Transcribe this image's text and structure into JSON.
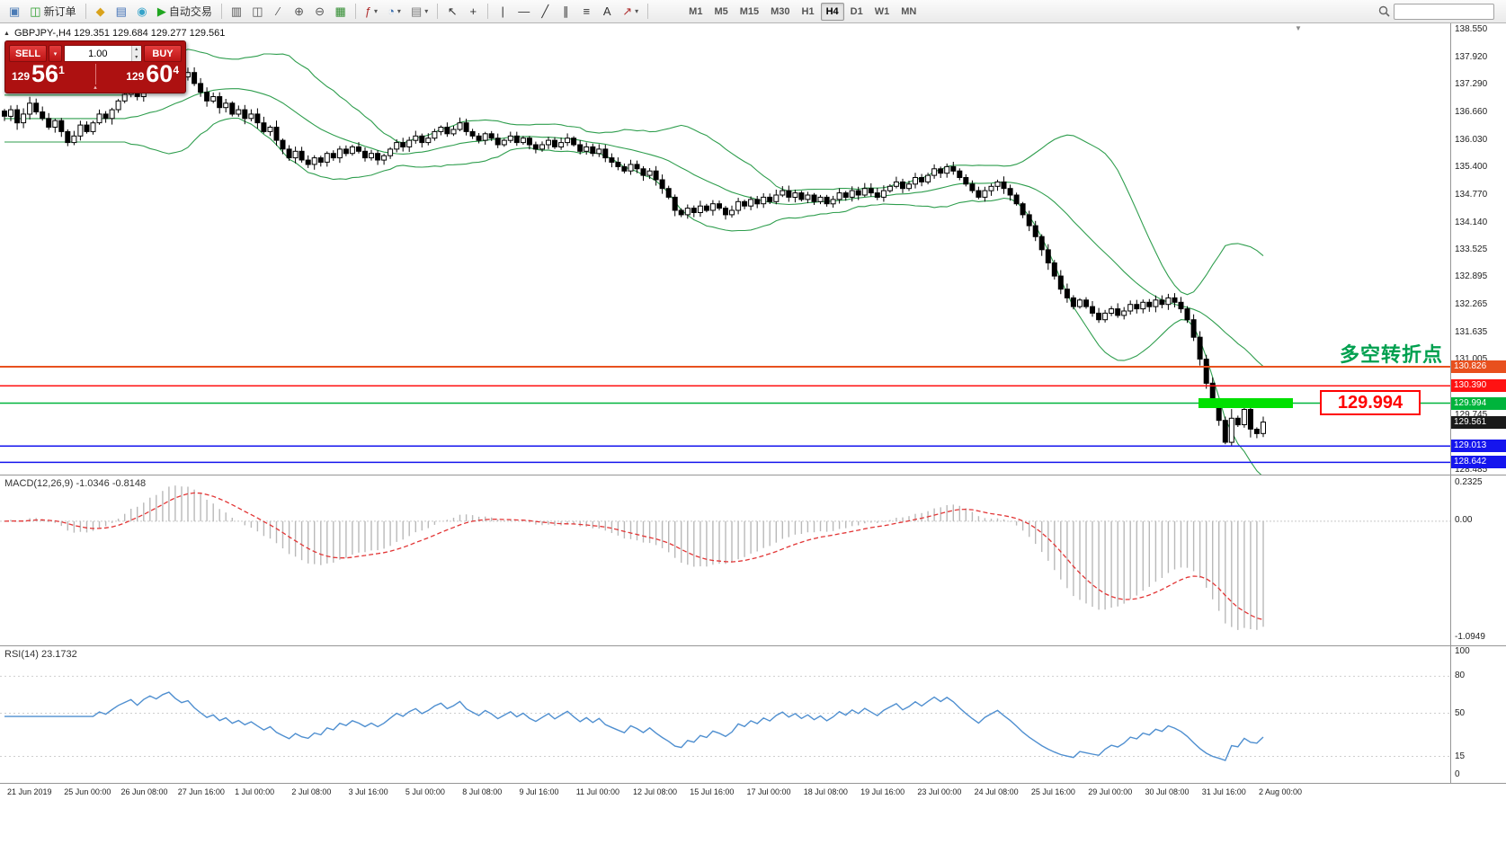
{
  "toolbar": {
    "buttons": [
      {
        "name": "chart-window-button",
        "glyph": "▣",
        "color": "#4a7ab5"
      },
      {
        "name": "new-order-button",
        "glyph": "◫",
        "color": "#2a9d2a",
        "label": "新订单"
      },
      {
        "sep": true
      },
      {
        "name": "metaeditor-button",
        "glyph": "◆",
        "color": "#d9a21b"
      },
      {
        "name": "market-watch-button",
        "glyph": "▤",
        "color": "#3f6fb5"
      },
      {
        "name": "navigator-button",
        "glyph": "◉",
        "color": "#36a3c9"
      },
      {
        "name": "autotrading-button",
        "glyph": "▶",
        "color": "#1fa51f",
        "label": "自动交易"
      },
      {
        "sep": true
      },
      {
        "name": "bar-chart-button",
        "glyph": "▥",
        "color": "#555555"
      },
      {
        "name": "candlestick-chart-button",
        "glyph": "◫",
        "color": "#555555"
      },
      {
        "name": "line-chart-button",
        "glyph": "∕",
        "color": "#555555"
      },
      {
        "name": "zoom-in-button",
        "glyph": "⊕",
        "color": "#555555"
      },
      {
        "name": "zoom-out-button",
        "glyph": "⊖",
        "color": "#555555"
      },
      {
        "name": "tile-windows-button",
        "glyph": "▦",
        "color": "#2c8a2c"
      },
      {
        "sep": true
      },
      {
        "name": "indicators-button",
        "glyph": "ƒ",
        "color": "#b03030",
        "caret": true
      },
      {
        "name": "periods-button",
        "glyph": "◔",
        "color": "#3a6fb0",
        "caret": true
      },
      {
        "name": "templates-button",
        "glyph": "▤",
        "color": "#777777",
        "caret": true
      },
      {
        "sep": true
      },
      {
        "name": "cursor-button",
        "glyph": "↖",
        "color": "#333333"
      },
      {
        "name": "crosshair-button",
        "glyph": "+",
        "color": "#333333"
      },
      {
        "sep": true
      },
      {
        "name": "vertical-line-button",
        "glyph": "|",
        "color": "#333333"
      },
      {
        "name": "horizontal-line-button",
        "glyph": "—",
        "color": "#333333"
      },
      {
        "name": "trendline-button",
        "glyph": "╱",
        "color": "#333333"
      },
      {
        "name": "equidistant-channel-button",
        "glyph": "∥",
        "color": "#333333"
      },
      {
        "name": "fibonacci-button",
        "glyph": "≡",
        "color": "#333333"
      },
      {
        "name": "text-button",
        "glyph": "A",
        "color": "#333333"
      },
      {
        "name": "arrows-button",
        "glyph": "↗",
        "color": "#b03030",
        "caret": true
      },
      {
        "sep": true
      }
    ],
    "timeframes": [
      "M1",
      "M5",
      "M15",
      "M30",
      "H1",
      "H4",
      "D1",
      "W1",
      "MN"
    ],
    "active_timeframe": "H4"
  },
  "icons": {
    "caret_down": "▾",
    "caret_up": "▴",
    "collapse": "▲",
    "shift_marker": "▼"
  },
  "symbol_info": "GBPJPY-,H4  129.351 129.684 129.277 129.561",
  "trade_panel": {
    "sell_label": "SELL",
    "buy_label": "BUY",
    "volume": "1.00",
    "sell_price": {
      "prefix": "129",
      "big": "56",
      "sup": "1"
    },
    "buy_price": {
      "prefix": "129",
      "big": "60",
      "sup": "4"
    }
  },
  "annotation": {
    "text": "多空转折点",
    "color": "#00a04f"
  },
  "price_callout": {
    "text": "129.994",
    "color": "#ff0000"
  },
  "highlight_zone": {
    "price": 129.994,
    "color": "#00e000"
  },
  "levels": [
    {
      "label": "130.826",
      "price": 130.826,
      "color": "#e8501e",
      "line": true
    },
    {
      "label": "130.390",
      "price": 130.39,
      "color": "#ff1212",
      "line": true
    },
    {
      "label": "129.994",
      "price": 129.994,
      "color": "#00b43c",
      "line": true
    },
    {
      "label": "129.561",
      "price": 129.561,
      "color": "#1a1a1a",
      "line": false
    },
    {
      "label": "129.013",
      "price": 129.013,
      "color": "#1515ee",
      "line": true
    },
    {
      "label": "128.642",
      "price": 128.642,
      "color": "#1515ee",
      "line": true
    }
  ],
  "price_axis": {
    "ticks": [
      "138.550",
      "137.920",
      "137.290",
      "136.660",
      "136.030",
      "135.400",
      "134.770",
      "134.140",
      "133.525",
      "132.895",
      "132.265",
      "131.635",
      "131.005",
      "130.375",
      "129.745",
      "129.115",
      "128.485"
    ]
  },
  "macd": {
    "label": "MACD(12,26,9) -1.0346 -0.8148",
    "ticks": [
      "0.2325",
      "0.00",
      "-1.0949"
    ]
  },
  "rsi": {
    "label": "RSI(14) 23.1732",
    "ticks": [
      "100",
      "80",
      "50",
      "15",
      "0"
    ],
    "levels": [
      80,
      50,
      15
    ]
  },
  "time_axis": [
    "21 Jun 2019",
    "25 Jun 00:00",
    "26 Jun 08:00",
    "27 Jun 16:00",
    "1 Jul 00:00",
    "2 Jul 08:00",
    "3 Jul 16:00",
    "5 Jul 00:00",
    "8 Jul 08:00",
    "9 Jul 16:00",
    "11 Jul 00:00",
    "12 Jul 08:00",
    "15 Jul 16:00",
    "17 Jul 00:00",
    "18 Jul 08:00",
    "19 Jul 16:00",
    "23 Jul 00:00",
    "24 Jul 08:00",
    "25 Jul 16:00",
    "29 Jul 00:00",
    "30 Jul 08:00",
    "31 Jul 16:00",
    "2 Aug 00:00"
  ],
  "chart_data": {
    "type": "candlestick",
    "symbol": "GBPJPY-",
    "timeframe": "H4",
    "ohlc_current": {
      "open": 129.351,
      "high": 129.684,
      "low": 129.277,
      "close": 129.561
    },
    "price_range": [
      128.485,
      138.55
    ],
    "overlays": {
      "bollinger_period": 20,
      "bollinger_deviation": 2,
      "bollinger_color": "#2f9e4e"
    },
    "closes": [
      136.55,
      136.7,
      136.4,
      136.6,
      136.85,
      136.65,
      136.5,
      136.3,
      136.45,
      136.2,
      135.95,
      136.1,
      136.35,
      136.2,
      136.4,
      136.6,
      136.5,
      136.7,
      136.9,
      137.05,
      137.2,
      137.0,
      137.3,
      137.5,
      137.4,
      137.65,
      137.8,
      137.6,
      137.45,
      137.55,
      137.3,
      137.1,
      136.9,
      137.0,
      136.75,
      136.85,
      136.6,
      136.7,
      136.5,
      136.6,
      136.4,
      136.2,
      136.3,
      136.0,
      135.8,
      135.6,
      135.75,
      135.55,
      135.45,
      135.6,
      135.5,
      135.7,
      135.6,
      135.8,
      135.7,
      135.85,
      135.75,
      135.6,
      135.7,
      135.55,
      135.65,
      135.8,
      135.95,
      135.85,
      136.0,
      136.1,
      135.95,
      136.05,
      136.2,
      136.3,
      136.15,
      136.25,
      136.4,
      136.2,
      136.1,
      136.0,
      136.15,
      136.05,
      135.9,
      136.0,
      136.1,
      135.95,
      136.05,
      135.9,
      135.8,
      135.9,
      136.0,
      135.85,
      135.95,
      136.05,
      135.9,
      135.75,
      135.85,
      135.7,
      135.8,
      135.6,
      135.5,
      135.4,
      135.3,
      135.45,
      135.35,
      135.2,
      135.3,
      135.1,
      134.9,
      134.7,
      134.4,
      134.3,
      134.45,
      134.35,
      134.5,
      134.4,
      134.55,
      134.45,
      134.3,
      134.4,
      134.6,
      134.5,
      134.65,
      134.55,
      134.7,
      134.6,
      134.75,
      134.85,
      134.7,
      134.8,
      134.65,
      134.75,
      134.6,
      134.7,
      134.55,
      134.65,
      134.8,
      134.7,
      134.85,
      134.75,
      134.9,
      134.8,
      134.7,
      134.85,
      134.95,
      135.05,
      134.9,
      135.0,
      135.15,
      135.05,
      135.2,
      135.35,
      135.25,
      135.4,
      135.3,
      135.15,
      135.0,
      134.85,
      134.7,
      134.85,
      134.95,
      135.05,
      134.9,
      134.75,
      134.55,
      134.3,
      134.05,
      133.8,
      133.5,
      133.2,
      132.9,
      132.6,
      132.4,
      132.2,
      132.35,
      132.2,
      132.05,
      131.9,
      132.05,
      132.15,
      132.0,
      132.1,
      132.25,
      132.15,
      132.3,
      132.2,
      132.35,
      132.25,
      132.4,
      132.3,
      132.15,
      131.9,
      131.5,
      131.0,
      130.45,
      129.95,
      129.6,
      129.1,
      129.65,
      129.5,
      129.85,
      129.4,
      129.3,
      129.561
    ]
  }
}
